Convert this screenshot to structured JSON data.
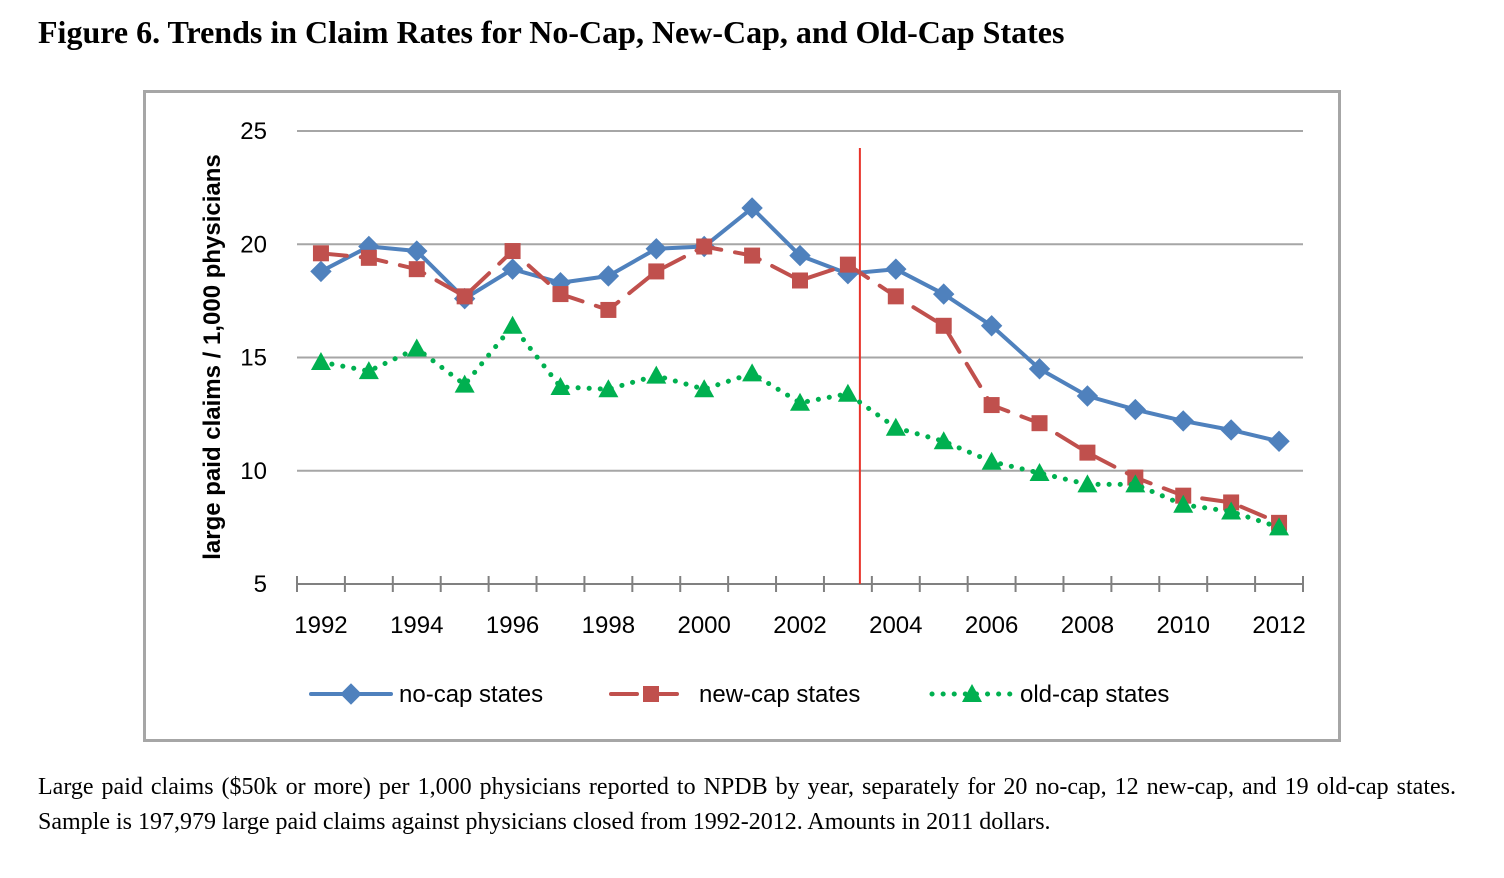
{
  "figure_title": "Figure 6. Trends in Claim Rates for No-Cap, New-Cap, and Old-Cap States",
  "caption": "Large paid claims ($50k or more) per 1,000 physicians reported to NPDB by year, separately for 20 no-cap, 12 new-cap, and 19 old-cap states.  Sample is 197,979 large paid claims against physicians closed from 1992-2012.  Amounts in 2011 dollars.",
  "chart_data": {
    "type": "line",
    "title": "",
    "xlabel": "",
    "ylabel": "large paid claims / 1,000 physicians",
    "x": [
      1992,
      1993,
      1994,
      1995,
      1996,
      1997,
      1998,
      1999,
      2000,
      2001,
      2002,
      2003,
      2004,
      2005,
      2006,
      2007,
      2008,
      2009,
      2010,
      2011,
      2012
    ],
    "x_tick_labels": [
      "1992",
      "1994",
      "1996",
      "1998",
      "2000",
      "2002",
      "2004",
      "2006",
      "2008",
      "2010",
      "2012"
    ],
    "y_tick_labels": [
      "5",
      "10",
      "15",
      "20",
      "25"
    ],
    "ylim": [
      5,
      25
    ],
    "y_ticks": [
      5,
      10,
      15,
      20,
      25
    ],
    "grid": "horizontal",
    "legend_position": "bottom",
    "reference_line": {
      "x": 2003.25,
      "color": "#e8332a"
    },
    "series": [
      {
        "name": "no-cap states",
        "color": "#4f81bd",
        "marker": "diamond",
        "line_style": "solid",
        "values": [
          18.8,
          19.9,
          19.7,
          17.6,
          18.9,
          18.3,
          18.6,
          19.8,
          19.9,
          21.6,
          19.5,
          18.7,
          18.9,
          17.8,
          16.4,
          14.5,
          13.3,
          12.7,
          12.2,
          11.8,
          11.3
        ]
      },
      {
        "name": "new-cap states",
        "color": "#c0504d",
        "marker": "square",
        "line_style": "dashed",
        "values": [
          19.6,
          19.4,
          18.9,
          17.7,
          19.7,
          17.8,
          17.1,
          18.8,
          19.9,
          19.5,
          18.4,
          19.1,
          17.7,
          16.4,
          12.9,
          12.1,
          10.8,
          9.7,
          8.9,
          8.6,
          7.7
        ]
      },
      {
        "name": "old-cap states",
        "color": "#00b050",
        "marker": "triangle",
        "line_style": "dotted",
        "values": [
          14.8,
          14.4,
          15.4,
          13.8,
          16.4,
          13.7,
          13.6,
          14.2,
          13.6,
          14.3,
          13.0,
          13.4,
          11.9,
          11.3,
          10.4,
          9.9,
          9.4,
          9.4,
          8.5,
          8.2,
          7.5
        ]
      }
    ]
  }
}
